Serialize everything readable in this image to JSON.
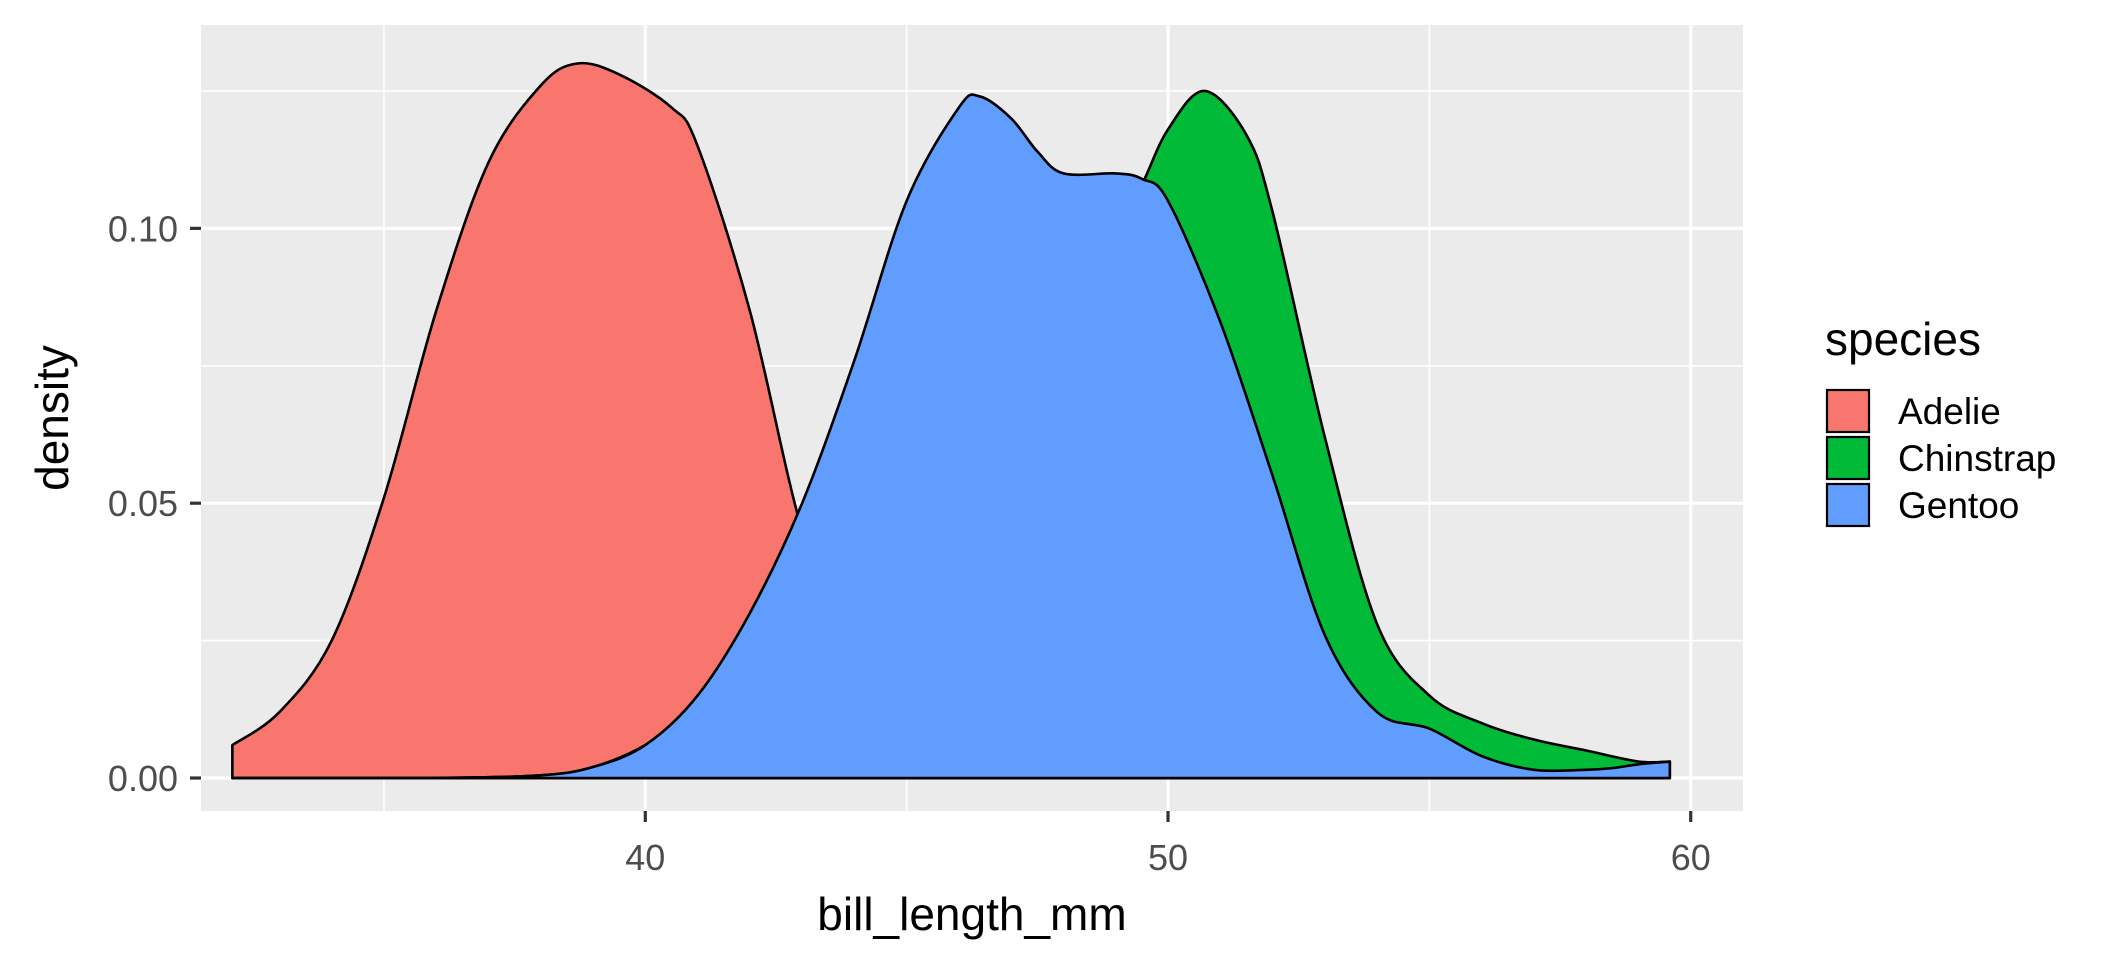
{
  "chart_data": {
    "type": "area",
    "subtype": "overlapping density curves",
    "xlabel": "bill_length_mm",
    "ylabel": "density",
    "xlim": [
      31.5,
      61
    ],
    "ylim": [
      -0.006,
      0.137
    ],
    "x_ticks": [
      40,
      50,
      60
    ],
    "x_tick_labels": [
      "40",
      "50",
      "60"
    ],
    "y_ticks": [
      0.0,
      0.05,
      0.1
    ],
    "y_tick_labels": [
      "0.00",
      "0.05",
      "0.10"
    ],
    "grid": true,
    "legend": {
      "title": "species",
      "position": "right"
    },
    "series": [
      {
        "name": "Adelie",
        "color": "#F8766D",
        "x": [
          32.1,
          33.0,
          34.0,
          35.0,
          36.0,
          37.0,
          38.0,
          38.7,
          39.5,
          40.5,
          41.0,
          42.0,
          43.0,
          44.0,
          45.0,
          46.0,
          47.0,
          48.0,
          50.0,
          55.0,
          59.6
        ],
        "y": [
          0.006,
          0.012,
          0.025,
          0.051,
          0.085,
          0.112,
          0.126,
          0.13,
          0.128,
          0.122,
          0.115,
          0.085,
          0.045,
          0.02,
          0.009,
          0.004,
          0.0015,
          0.0005,
          0.0,
          0.0,
          0.0
        ]
      },
      {
        "name": "Chinstrap",
        "color": "#00BA38",
        "x": [
          32.1,
          36.0,
          38.0,
          39.0,
          40.0,
          41.0,
          42.0,
          43.0,
          44.0,
          45.0,
          46.0,
          47.0,
          48.0,
          49.0,
          49.5,
          50.0,
          50.7,
          51.5,
          52.0,
          53.0,
          54.0,
          55.0,
          56.0,
          57.0,
          58.0,
          59.0,
          59.6
        ],
        "y": [
          0.0,
          0.0,
          0.0005,
          0.002,
          0.006,
          0.013,
          0.023,
          0.038,
          0.054,
          0.068,
          0.078,
          0.085,
          0.09,
          0.1,
          0.108,
          0.118,
          0.125,
          0.117,
          0.103,
          0.062,
          0.028,
          0.015,
          0.01,
          0.007,
          0.005,
          0.003,
          0.003
        ]
      },
      {
        "name": "Gentoo",
        "color": "#619CFF",
        "x": [
          32.1,
          36.0,
          38.0,
          39.0,
          40.0,
          41.0,
          42.0,
          43.0,
          44.0,
          45.0,
          46.0,
          46.4,
          47.0,
          47.5,
          48.0,
          49.0,
          49.5,
          50.0,
          51.0,
          52.0,
          53.0,
          54.0,
          55.0,
          56.0,
          57.0,
          58.0,
          58.5,
          59.0,
          59.6
        ],
        "y": [
          0.0,
          0.0,
          0.0005,
          0.002,
          0.006,
          0.015,
          0.03,
          0.05,
          0.076,
          0.105,
          0.122,
          0.124,
          0.12,
          0.114,
          0.11,
          0.11,
          0.109,
          0.105,
          0.083,
          0.055,
          0.026,
          0.012,
          0.009,
          0.004,
          0.0015,
          0.0015,
          0.0018,
          0.0025,
          0.003
        ]
      }
    ]
  }
}
